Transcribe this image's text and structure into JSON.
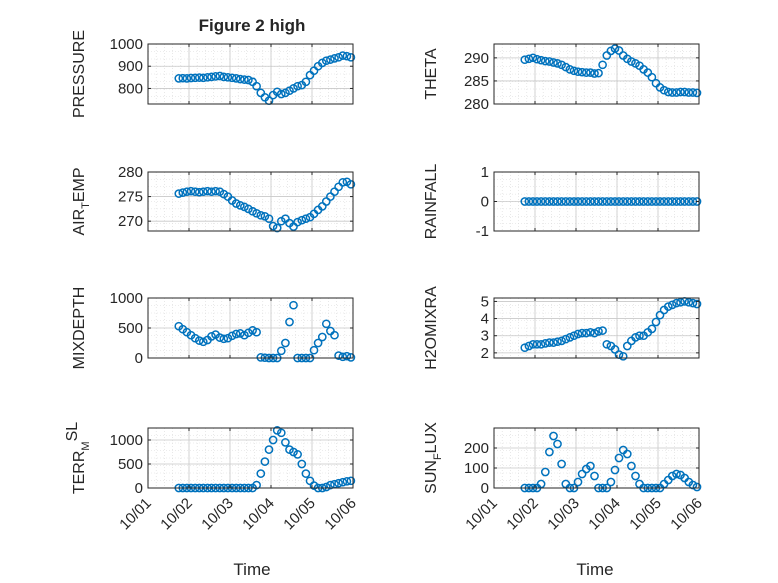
{
  "figure": {
    "title": "Figure 2 high",
    "xlabel": "Time",
    "xticks": [
      "10/01",
      "10/02",
      "10/03",
      "10/04",
      "10/05",
      "10/06"
    ],
    "marker_color": "#0072bd"
  },
  "chart_data": [
    {
      "type": "scatter",
      "ylabel": "PRESSURE",
      "ylim": [
        730,
        1000
      ],
      "yticks": [
        "800",
        "900",
        "1000"
      ],
      "grid": true,
      "x": [
        1.75,
        1.85,
        1.95,
        2.05,
        2.15,
        2.25,
        2.35,
        2.45,
        2.55,
        2.65,
        2.75,
        2.85,
        2.95,
        3.05,
        3.15,
        3.25,
        3.35,
        3.45,
        3.55,
        3.65,
        3.75,
        3.85,
        3.95,
        4.05,
        4.15,
        4.25,
        4.35,
        4.45,
        4.55,
        4.65,
        4.75,
        4.85,
        4.95,
        5.05,
        5.15,
        5.25,
        5.35,
        5.45,
        5.55,
        5.65,
        5.75,
        5.85,
        5.95
      ],
      "values": [
        845,
        846,
        845,
        847,
        848,
        849,
        848,
        850,
        852,
        854,
        856,
        852,
        850,
        848,
        845,
        842,
        840,
        838,
        830,
        810,
        780,
        760,
        745,
        770,
        785,
        775,
        780,
        790,
        800,
        810,
        815,
        830,
        860,
        880,
        900,
        915,
        925,
        930,
        935,
        940,
        948,
        945,
        940
      ]
    },
    {
      "type": "scatter",
      "ylabel": "THETA",
      "ylim": [
        280,
        293
      ],
      "yticks": [
        "280",
        "285",
        "290"
      ],
      "grid": true,
      "x": [
        1.75,
        1.85,
        1.95,
        2.05,
        2.15,
        2.25,
        2.35,
        2.45,
        2.55,
        2.65,
        2.75,
        2.85,
        2.95,
        3.05,
        3.15,
        3.25,
        3.35,
        3.45,
        3.55,
        3.65,
        3.75,
        3.85,
        3.95,
        4.05,
        4.15,
        4.25,
        4.35,
        4.45,
        4.55,
        4.65,
        4.75,
        4.85,
        4.95,
        5.05,
        5.15,
        5.25,
        5.35,
        5.45,
        5.55,
        5.65,
        5.75,
        5.85,
        5.95
      ],
      "values": [
        289.6,
        289.8,
        290.0,
        289.7,
        289.5,
        289.3,
        289.2,
        289.0,
        288.8,
        288.5,
        288.0,
        287.5,
        287.2,
        287.0,
        286.9,
        286.8,
        286.8,
        286.6,
        286.7,
        288.5,
        290.5,
        291.5,
        292.0,
        291.6,
        290.5,
        289.8,
        289.2,
        288.8,
        288.3,
        287.5,
        286.8,
        285.8,
        284.5,
        283.6,
        283.0,
        282.6,
        282.5,
        282.5,
        282.6,
        282.6,
        282.5,
        282.5,
        282.4
      ]
    },
    {
      "type": "scatter",
      "ylabel": "AIR",
      "ylabel_sub": "T",
      "ylabel_after": "EMP",
      "ylim": [
        268,
        280
      ],
      "yticks": [
        "270",
        "275",
        "280"
      ],
      "grid": true,
      "x": [
        1.75,
        1.85,
        1.95,
        2.05,
        2.15,
        2.25,
        2.35,
        2.45,
        2.55,
        2.65,
        2.75,
        2.85,
        2.95,
        3.05,
        3.15,
        3.25,
        3.35,
        3.45,
        3.55,
        3.65,
        3.75,
        3.85,
        3.95,
        4.05,
        4.15,
        4.25,
        4.35,
        4.45,
        4.55,
        4.65,
        4.75,
        4.85,
        4.95,
        5.05,
        5.15,
        5.25,
        5.35,
        5.45,
        5.55,
        5.65,
        5.75,
        5.85,
        5.95
      ],
      "values": [
        275.6,
        275.8,
        276.0,
        276.1,
        276.0,
        275.9,
        276.0,
        276.1,
        276.0,
        276.1,
        276.0,
        275.5,
        275.0,
        274.2,
        273.6,
        273.2,
        272.9,
        272.5,
        272.0,
        271.6,
        271.2,
        271.0,
        270.5,
        269.0,
        268.6,
        270.0,
        270.5,
        269.6,
        268.9,
        269.8,
        270.2,
        270.5,
        270.8,
        271.5,
        272.3,
        273.0,
        274.0,
        275.0,
        276.0,
        277.0,
        277.9,
        278.0,
        277.5
      ]
    },
    {
      "type": "scatter",
      "ylabel": "RAINFALL",
      "ylim": [
        -1,
        1
      ],
      "yticks": [
        "-1",
        "0",
        "1"
      ],
      "grid": true,
      "x": [
        1.75,
        1.85,
        1.95,
        2.05,
        2.15,
        2.25,
        2.35,
        2.45,
        2.55,
        2.65,
        2.75,
        2.85,
        2.95,
        3.05,
        3.15,
        3.25,
        3.35,
        3.45,
        3.55,
        3.65,
        3.75,
        3.85,
        3.95,
        4.05,
        4.15,
        4.25,
        4.35,
        4.45,
        4.55,
        4.65,
        4.75,
        4.85,
        4.95,
        5.05,
        5.15,
        5.25,
        5.35,
        5.45,
        5.55,
        5.65,
        5.75,
        5.85,
        5.95
      ],
      "values": [
        0,
        0,
        0,
        0,
        0,
        0,
        0,
        0,
        0,
        0,
        0,
        0,
        0,
        0,
        0,
        0,
        0,
        0,
        0,
        0,
        0,
        0,
        0,
        0,
        0,
        0,
        0,
        0,
        0,
        0,
        0,
        0,
        0,
        0,
        0,
        0,
        0,
        0,
        0,
        0,
        0,
        0,
        0
      ]
    },
    {
      "type": "scatter",
      "ylabel": "MIXDEPTH",
      "ylim": [
        0,
        1000
      ],
      "yticks": [
        "0",
        "500",
        "1000"
      ],
      "grid": true,
      "x": [
        1.75,
        1.85,
        1.95,
        2.05,
        2.15,
        2.25,
        2.35,
        2.45,
        2.55,
        2.65,
        2.75,
        2.85,
        2.95,
        3.05,
        3.15,
        3.25,
        3.35,
        3.45,
        3.55,
        3.65,
        3.75,
        3.85,
        3.95,
        4.05,
        4.15,
        4.25,
        4.35,
        4.45,
        4.55,
        4.65,
        4.75,
        4.85,
        4.95,
        5.05,
        5.15,
        5.25,
        5.35,
        5.45,
        5.55,
        5.65,
        5.75,
        5.85,
        5.95
      ],
      "values": [
        530,
        480,
        430,
        380,
        330,
        290,
        270,
        300,
        360,
        390,
        340,
        320,
        330,
        370,
        400,
        410,
        380,
        420,
        460,
        430,
        10,
        5,
        0,
        0,
        0,
        120,
        250,
        600,
        880,
        0,
        0,
        0,
        0,
        130,
        250,
        350,
        570,
        450,
        380,
        40,
        20,
        30,
        10
      ]
    },
    {
      "type": "scatter",
      "ylabel": "H2OMIXRA",
      "ylim": [
        1.7,
        5.2
      ],
      "yticks": [
        "2",
        "3",
        "4",
        "5"
      ],
      "grid": true,
      "x": [
        1.75,
        1.85,
        1.95,
        2.05,
        2.15,
        2.25,
        2.35,
        2.45,
        2.55,
        2.65,
        2.75,
        2.85,
        2.95,
        3.05,
        3.15,
        3.25,
        3.35,
        3.45,
        3.55,
        3.65,
        3.75,
        3.85,
        3.95,
        4.05,
        4.15,
        4.25,
        4.35,
        4.45,
        4.55,
        4.65,
        4.75,
        4.85,
        4.95,
        5.05,
        5.15,
        5.25,
        5.35,
        5.45,
        5.55,
        5.65,
        5.75,
        5.85,
        5.95
      ],
      "values": [
        2.3,
        2.4,
        2.5,
        2.5,
        2.5,
        2.55,
        2.6,
        2.6,
        2.65,
        2.7,
        2.8,
        2.9,
        3.0,
        3.1,
        3.15,
        3.15,
        3.2,
        3.15,
        3.25,
        3.3,
        2.5,
        2.4,
        2.2,
        1.9,
        1.8,
        2.4,
        2.7,
        2.9,
        3.0,
        3.0,
        3.2,
        3.4,
        3.8,
        4.2,
        4.5,
        4.7,
        4.8,
        4.9,
        4.95,
        5.0,
        4.95,
        4.9,
        4.85
      ]
    },
    {
      "type": "scatter",
      "ylabel": "TERR",
      "ylabel_sub": "M",
      "ylabel_sup": "SL",
      "ylim": [
        0,
        1250
      ],
      "yticks": [
        "0",
        "500",
        "1000"
      ],
      "grid": true,
      "x": [
        1.75,
        1.85,
        1.95,
        2.05,
        2.15,
        2.25,
        2.35,
        2.45,
        2.55,
        2.65,
        2.75,
        2.85,
        2.95,
        3.05,
        3.15,
        3.25,
        3.35,
        3.45,
        3.55,
        3.65,
        3.75,
        3.85,
        3.95,
        4.05,
        4.15,
        4.25,
        4.35,
        4.45,
        4.55,
        4.65,
        4.75,
        4.85,
        4.95,
        5.05,
        5.15,
        5.25,
        5.35,
        5.45,
        5.55,
        5.65,
        5.75,
        5.85,
        5.95
      ],
      "values": [
        0,
        0,
        0,
        0,
        0,
        0,
        0,
        0,
        0,
        0,
        0,
        0,
        0,
        0,
        0,
        0,
        0,
        0,
        0,
        60,
        300,
        550,
        800,
        1000,
        1200,
        1150,
        950,
        800,
        750,
        700,
        500,
        300,
        150,
        50,
        0,
        0,
        20,
        60,
        80,
        100,
        120,
        140,
        150
      ]
    },
    {
      "type": "scatter",
      "ylabel": "SUN",
      "ylabel_sub": "F",
      "ylabel_after": "LUX",
      "ylim": [
        0,
        300
      ],
      "yticks": [
        "0",
        "100",
        "200"
      ],
      "grid": true,
      "x": [
        1.75,
        1.85,
        1.95,
        2.05,
        2.15,
        2.25,
        2.35,
        2.45,
        2.55,
        2.65,
        2.75,
        2.85,
        2.95,
        3.05,
        3.15,
        3.25,
        3.35,
        3.45,
        3.55,
        3.65,
        3.75,
        3.85,
        3.95,
        4.05,
        4.15,
        4.25,
        4.35,
        4.45,
        4.55,
        4.65,
        4.75,
        4.85,
        4.95,
        5.05,
        5.15,
        5.25,
        5.35,
        5.45,
        5.55,
        5.65,
        5.75,
        5.85,
        5.95
      ],
      "values": [
        0,
        0,
        0,
        0,
        20,
        80,
        180,
        260,
        220,
        120,
        20,
        0,
        0,
        30,
        70,
        95,
        110,
        60,
        0,
        0,
        0,
        30,
        90,
        150,
        190,
        170,
        110,
        60,
        20,
        0,
        0,
        0,
        0,
        0,
        20,
        40,
        60,
        70,
        65,
        50,
        30,
        15,
        5
      ]
    }
  ]
}
